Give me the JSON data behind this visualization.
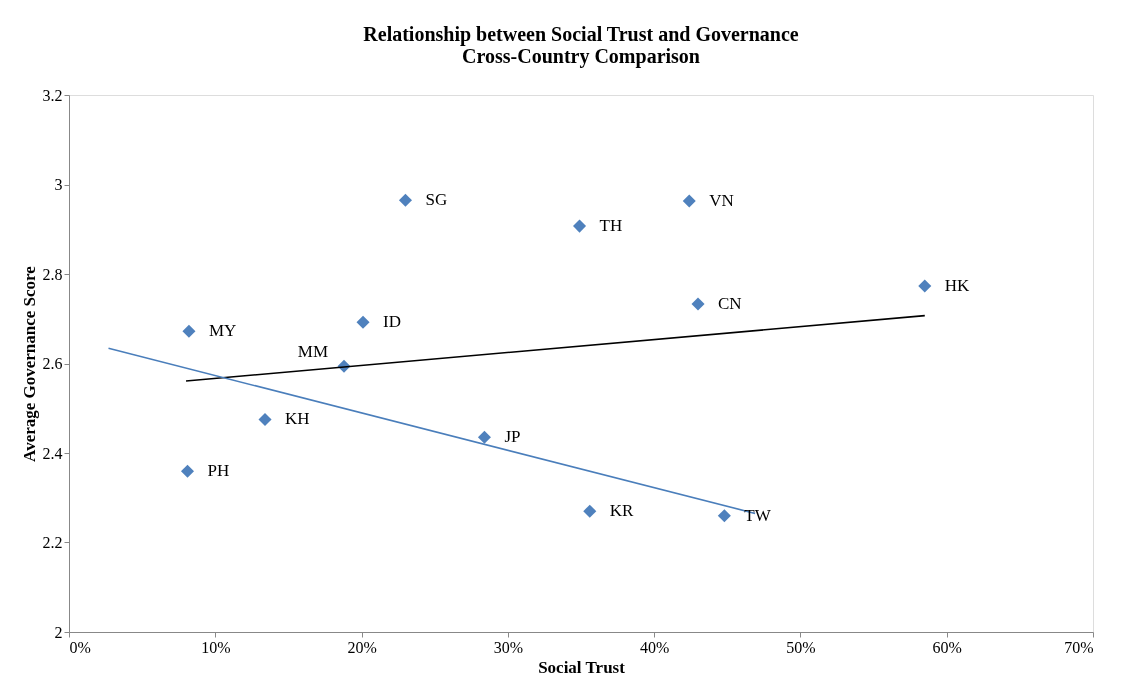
{
  "chart_data": {
    "type": "scatter",
    "title": "Relationship between Social Trust and Governance\nCross-Country Comparison",
    "xlabel": "Social Trust",
    "ylabel": "Average Governance Score",
    "xlim": [
      0,
      70
    ],
    "xticks": [
      {
        "value": 0,
        "label": "0%"
      },
      {
        "value": 10,
        "label": "10%"
      },
      {
        "value": 20,
        "label": "20%"
      },
      {
        "value": 30,
        "label": "30%"
      },
      {
        "value": 40,
        "label": "40%"
      },
      {
        "value": 50,
        "label": "50%"
      },
      {
        "value": 60,
        "label": "60%"
      },
      {
        "value": 70,
        "label": "70%"
      }
    ],
    "ylim": [
      2,
      3.2
    ],
    "yticks": [
      2,
      2.2,
      2.4,
      2.6,
      2.8,
      3,
      3.2
    ],
    "grid": false,
    "series": [
      {
        "color": "#4f81bd",
        "marker": "diamond",
        "x": [
          23.0,
          42.4,
          34.9,
          58.5,
          43.0,
          20.1,
          8.2,
          18.8,
          13.4,
          28.4,
          35.6,
          44.8,
          8.1
        ],
        "values": [
          2.965,
          2.963,
          2.907,
          2.773,
          2.733,
          2.692,
          2.672,
          2.594,
          2.475,
          2.435,
          2.27,
          2.26,
          2.359
        ]
      },
      {
        "type": "line",
        "color": "#000000",
        "x": [
          8.0,
          58.5
        ],
        "values": [
          2.561,
          2.707
        ]
      },
      {
        "type": "line",
        "color": "#4a7ebb",
        "x": [
          2.7,
          46.9
        ],
        "values": [
          2.634,
          2.265
        ]
      }
    ],
    "annotations": [
      {
        "text": "SG",
        "x": 23.0,
        "y": 2.965
      },
      {
        "text": "VN",
        "x": 42.4,
        "y": 2.963
      },
      {
        "text": "TH",
        "x": 34.9,
        "y": 2.907
      },
      {
        "text": "HK",
        "x": 58.5,
        "y": 2.773
      },
      {
        "text": "CN",
        "x": 43.0,
        "y": 2.733
      },
      {
        "text": "ID",
        "x": 20.1,
        "y": 2.692
      },
      {
        "text": "MY",
        "x": 8.2,
        "y": 2.672
      },
      {
        "text": "MM",
        "x": 18.8,
        "y": 2.594
      },
      {
        "text": "KH",
        "x": 13.4,
        "y": 2.475
      },
      {
        "text": "JP",
        "x": 28.4,
        "y": 2.435
      },
      {
        "text": "KR",
        "x": 35.6,
        "y": 2.27
      },
      {
        "text": "TW",
        "x": 44.8,
        "y": 2.26
      },
      {
        "text": "PH",
        "x": 8.1,
        "y": 2.359
      }
    ]
  }
}
